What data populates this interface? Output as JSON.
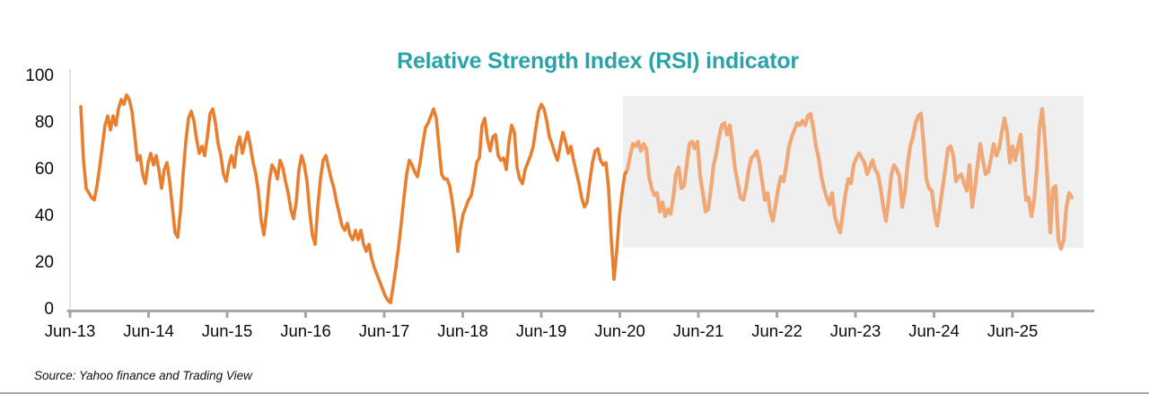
{
  "page": {
    "background": "#ffffff",
    "source_note": "Source: Yahoo finance and Trading View"
  },
  "chart_data": {
    "type": "line",
    "title": "Relative Strength Index (RSI) indicator",
    "title_color": "#29A3A9",
    "grid": false,
    "legend": false,
    "x_axis": {
      "tick_labels": [
        "Jun-13",
        "Jun-14",
        "Jun-15",
        "Jun-16",
        "Jun-17",
        "Jun-18",
        "Jun-19",
        "Jun-20",
        "Jun-21",
        "Jun-22",
        "Jun-23",
        "Jun-24",
        "Jun-25"
      ],
      "tick_years": [
        2013.45,
        2014.45,
        2015.45,
        2016.45,
        2017.45,
        2018.45,
        2019.45,
        2020.45,
        2021.45,
        2022.45,
        2023.45,
        2024.45,
        2025.45
      ],
      "range_years": [
        2013.3,
        2026.46
      ],
      "axis_line_color": "#A6A6A6"
    },
    "y_axis": {
      "ticks": [
        0,
        20,
        40,
        60,
        80,
        100
      ],
      "range": [
        0,
        100
      ],
      "axis_line_color": "#DCDCDC",
      "label_color": "#0a0a0a"
    },
    "highlight_region": {
      "x0_year": 2020.49,
      "x1_year": 2026.35,
      "y0_value": 26.5,
      "y1_value": 91.5,
      "fill": "#EFEFEF"
    },
    "series": [
      {
        "name": "RSI",
        "x_start_year": 2013.587,
        "x_step_years": 0.034286,
        "color_before_highlight": "#E87E2E",
        "color_in_highlight": "#F1A877",
        "highlight_split_index": 203,
        "values": [
          87,
          64,
          52,
          50,
          48,
          47,
          53,
          61,
          70,
          79,
          83,
          77,
          83,
          79,
          86,
          90,
          88,
          92,
          90,
          85,
          75,
          64,
          66,
          58,
          54,
          63,
          67,
          62,
          66,
          60,
          52,
          60,
          63,
          55,
          44,
          33,
          31,
          42,
          58,
          72,
          82,
          85,
          81,
          73,
          67,
          70,
          66,
          74,
          84,
          86,
          80,
          71,
          66,
          58,
          55,
          62,
          66,
          61,
          70,
          74,
          67,
          72,
          76,
          70,
          63,
          58,
          50,
          38,
          32,
          42,
          55,
          62,
          60,
          56,
          64,
          61,
          55,
          50,
          43,
          39,
          46,
          60,
          66,
          62,
          55,
          42,
          32,
          28,
          44,
          56,
          64,
          66,
          61,
          56,
          52,
          46,
          41,
          36,
          34,
          37,
          32,
          30,
          34,
          30,
          34,
          28,
          25,
          28,
          22,
          18,
          15,
          12,
          9,
          6,
          4,
          3,
          10,
          18,
          27,
          37,
          48,
          58,
          64,
          62,
          59,
          57,
          63,
          71,
          78,
          80,
          83,
          86,
          82,
          70,
          58,
          56,
          56,
          53,
          46,
          37,
          25,
          35,
          41,
          44,
          47,
          49,
          55,
          63,
          65,
          79,
          82,
          73,
          68,
          74,
          75,
          66,
          64,
          65,
          60,
          72,
          79,
          76,
          61,
          56,
          54,
          60,
          63,
          66,
          70,
          78,
          85,
          88,
          86,
          81,
          74,
          71,
          67,
          64,
          70,
          76,
          72,
          67,
          70,
          64,
          59,
          54,
          48,
          44,
          46,
          55,
          63,
          68,
          69,
          64,
          62,
          63,
          52,
          30,
          13,
          25,
          40,
          50,
          58,
          60,
          66,
          71,
          70,
          72,
          68,
          71,
          69,
          57,
          52,
          49,
          50,
          42,
          46,
          40,
          43,
          41,
          48,
          58,
          61,
          52,
          53,
          62,
          71,
          72,
          69,
          72,
          57,
          50,
          42,
          43,
          52,
          62,
          67,
          74,
          79,
          80,
          75,
          79,
          70,
          60,
          54,
          48,
          47,
          52,
          60,
          65,
          66,
          68,
          63,
          55,
          47,
          50,
          42,
          38,
          45,
          52,
          57,
          55,
          62,
          70,
          74,
          77,
          80,
          79,
          81,
          79,
          83,
          84,
          78,
          70,
          65,
          57,
          52,
          48,
          45,
          50,
          40,
          36,
          33,
          42,
          50,
          56,
          54,
          62,
          65,
          67,
          65,
          63,
          58,
          61,
          64,
          60,
          58,
          52,
          44,
          38,
          47,
          58,
          62,
          60,
          57,
          44,
          50,
          62,
          70,
          74,
          80,
          83,
          84,
          71,
          56,
          52,
          51,
          42,
          36,
          44,
          52,
          60,
          69,
          70,
          66,
          55,
          57,
          58,
          54,
          51,
          62,
          44,
          52,
          62,
          71,
          64,
          58,
          59,
          65,
          71,
          66,
          69,
          76,
          82,
          76,
          63,
          70,
          64,
          70,
          75,
          60,
          47,
          48,
          40,
          47,
          60,
          78,
          86,
          73,
          55,
          33,
          52,
          53,
          30,
          26,
          30,
          44,
          50,
          48
        ]
      }
    ]
  }
}
